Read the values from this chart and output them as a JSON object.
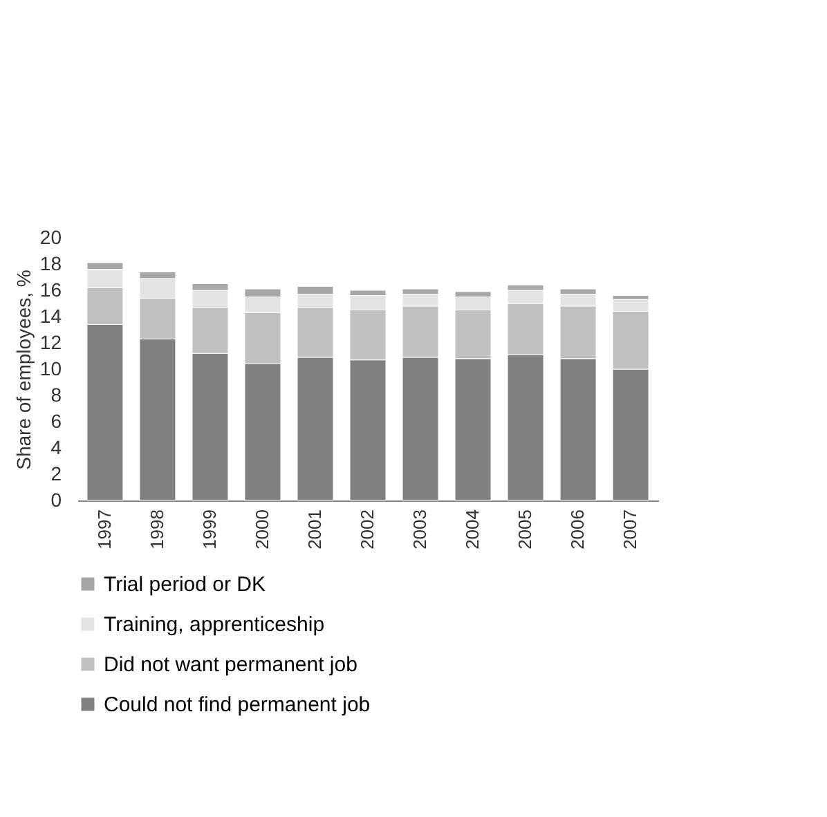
{
  "chart_data": {
    "type": "bar",
    "stacked": true,
    "ylabel": "Share of employees, %",
    "categories": [
      "1997",
      "1998",
      "1999",
      "2000",
      "2001",
      "2002",
      "2003",
      "2004",
      "2005",
      "2006",
      "2007"
    ],
    "series": [
      {
        "name": "Could not find permanent job",
        "color": "#808080",
        "values": [
          13.4,
          12.3,
          11.2,
          10.4,
          10.9,
          10.7,
          10.9,
          10.8,
          11.1,
          10.8,
          10.0
        ]
      },
      {
        "name": "Did not want permanent job",
        "color": "#c0c0c0",
        "values": [
          2.8,
          3.1,
          3.5,
          3.9,
          3.8,
          3.8,
          3.9,
          3.7,
          3.9,
          4.0,
          4.4
        ]
      },
      {
        "name": "Training, apprenticeship",
        "color": "#e4e4e4",
        "values": [
          1.4,
          1.5,
          1.3,
          1.2,
          1.0,
          1.1,
          0.9,
          1.0,
          1.0,
          0.9,
          0.9
        ]
      },
      {
        "name": "Trial period or DK",
        "color": "#a6a6a6",
        "values": [
          0.5,
          0.5,
          0.5,
          0.6,
          0.6,
          0.4,
          0.4,
          0.4,
          0.4,
          0.4,
          0.3
        ]
      }
    ],
    "ylim": [
      0,
      20
    ],
    "yticks": [
      0,
      2,
      4,
      6,
      8,
      10,
      12,
      14,
      16,
      18,
      20
    ],
    "grid": false,
    "legend": "bottom left"
  }
}
